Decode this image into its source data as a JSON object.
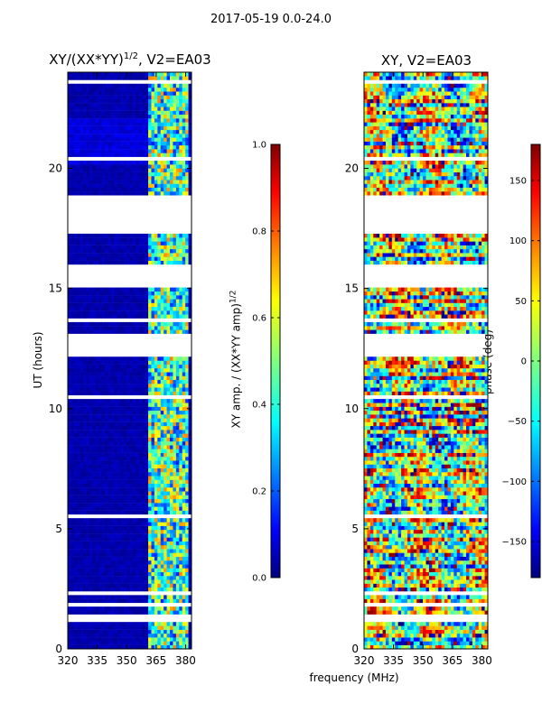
{
  "figure": {
    "suptitle": "2017-05-19 0.0-24.0",
    "xlabel_shared": "frequency (MHz)"
  },
  "left_panel": {
    "title_prefix": "XY/(XX*YY)",
    "title_exp": "1/2",
    "title_suffix": ", V2=EA03",
    "ylabel": "UT (hours)"
  },
  "left_colorbar": {
    "label_main": "XY amp. / (XX*YY amp)",
    "label_exp": "1/2"
  },
  "right_panel": {
    "title": "XY, V2=EA03"
  },
  "right_colorbar": {
    "label": "phase (deg)"
  },
  "chart_data": [
    {
      "type": "heatmap",
      "title": "XY/(XX*YY)^1/2, V2=EA03",
      "xlabel": "frequency (MHz)",
      "ylabel": "UT (hours)",
      "xlim": [
        320,
        383
      ],
      "ylim": [
        0,
        24
      ],
      "xticks": [
        320,
        335,
        350,
        365,
        380
      ],
      "yticks": [
        0,
        5,
        10,
        15,
        20
      ],
      "colormap": "jet",
      "clim": [
        0.0,
        1.0
      ],
      "colorbar_ticks": [
        0.0,
        0.2,
        0.4,
        0.6,
        0.8,
        1.0
      ],
      "colorbar_tick_labels": [
        "0.0",
        "0.2",
        "0.4",
        "0.6",
        "0.8",
        "1.0"
      ],
      "colorbar_label": "XY amp. / (XX*YY amp)^1/2",
      "flagged_ut_ranges": [
        [
          12.2,
          13.2
        ],
        [
          15.1,
          16.0
        ],
        [
          17.3,
          18.9
        ]
      ],
      "description_values": {
        "background_level": 0.02,
        "rfi_band_mhz": [
          361,
          381
        ],
        "rfi_level_range": [
          0.3,
          0.75
        ]
      }
    },
    {
      "type": "heatmap",
      "title": "XY, V2=EA03",
      "xlabel": "frequency (MHz)",
      "xlim": [
        320,
        383
      ],
      "ylim": [
        0,
        24
      ],
      "xticks": [
        320,
        335,
        350,
        365,
        380
      ],
      "yticks": [
        0,
        5,
        10,
        15,
        20
      ],
      "colormap": "jet",
      "clim": [
        -180,
        180
      ],
      "colorbar_ticks": [
        150,
        100,
        50,
        0,
        -50,
        -100,
        -150
      ],
      "colorbar_tick_labels": [
        "150",
        "100",
        "50",
        "0",
        "−50",
        "−100",
        "−150"
      ],
      "colorbar_label": "phase (deg)",
      "flagged_ut_ranges": [
        [
          12.2,
          13.2
        ],
        [
          15.1,
          16.0
        ],
        [
          17.3,
          18.9
        ]
      ]
    }
  ],
  "colors": {
    "jet_stops": [
      "#00007f",
      "#0000ff",
      "#007fff",
      "#00ffff",
      "#7fff7f",
      "#ffff00",
      "#ff7f00",
      "#ff0000",
      "#7f0000"
    ]
  }
}
